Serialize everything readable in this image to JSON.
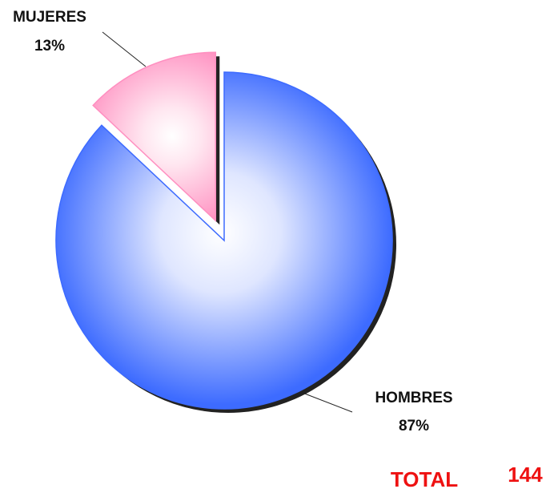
{
  "chart_data": {
    "type": "pie",
    "categories": [
      "HOMBRES",
      "MUJERES"
    ],
    "values": [
      87,
      13
    ],
    "value_labels": [
      "87%",
      "13%"
    ],
    "colors": [
      "#3d6bff",
      "#ff8fc0"
    ],
    "exploded": [
      false,
      true
    ],
    "annotation": {
      "label": "TOTAL",
      "value": 144
    }
  }
}
